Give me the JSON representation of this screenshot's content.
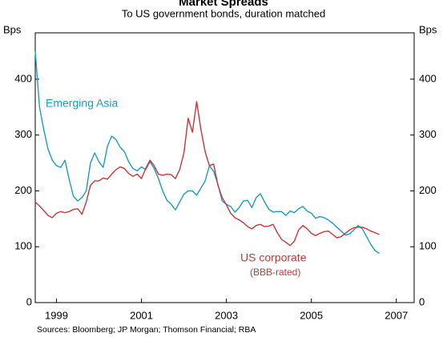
{
  "chart_data": {
    "type": "line",
    "title": "Market Spreads",
    "subtitle": "To US government bonds, duration matched",
    "y_label": "Bps",
    "y2_label": "Bps",
    "source": "Sources: Bloomberg; JP Morgan; Thomson Financial; RBA",
    "annotations": [
      {
        "text": "Emerging Asia",
        "series": 0
      },
      {
        "text": "US corporate",
        "series": 1
      },
      {
        "text": "(BBB-rated)",
        "series": 1
      }
    ],
    "x": [
      1998.5,
      1998.6,
      1998.7,
      1998.8,
      1998.9,
      1999.0,
      1999.1,
      1999.2,
      1999.3,
      1999.4,
      1999.5,
      1999.6,
      1999.7,
      1999.8,
      1999.9,
      2000.0,
      2000.1,
      2000.2,
      2000.3,
      2000.4,
      2000.5,
      2000.6,
      2000.7,
      2000.8,
      2000.9,
      2001.0,
      2001.1,
      2001.2,
      2001.3,
      2001.4,
      2001.5,
      2001.6,
      2001.7,
      2001.8,
      2001.9,
      2002.0,
      2002.1,
      2002.2,
      2002.3,
      2002.4,
      2002.5,
      2002.6,
      2002.7,
      2002.8,
      2002.9,
      2003.0,
      2003.1,
      2003.2,
      2003.3,
      2003.4,
      2003.5,
      2003.6,
      2003.7,
      2003.8,
      2003.9,
      2004.0,
      2004.1,
      2004.2,
      2004.3,
      2004.4,
      2004.5,
      2004.6,
      2004.7,
      2004.8,
      2004.9,
      2005.0,
      2005.1,
      2005.2,
      2005.3,
      2005.4,
      2005.5,
      2005.6,
      2005.7,
      2005.8,
      2005.9,
      2006.0,
      2006.1,
      2006.2,
      2006.3,
      2006.4,
      2006.5,
      2006.6
    ],
    "series": [
      {
        "name": "Emerging Asia",
        "color": "#1a9dc3",
        "values": [
          450,
          350,
          310,
          275,
          255,
          245,
          242,
          255,
          220,
          190,
          182,
          188,
          200,
          250,
          268,
          252,
          242,
          280,
          298,
          292,
          278,
          270,
          252,
          240,
          236,
          243,
          238,
          252,
          240,
          222,
          200,
          183,
          176,
          166,
          180,
          194,
          200,
          200,
          192,
          205,
          218,
          245,
          235,
          212,
          182,
          176,
          172,
          162,
          170,
          182,
          183,
          170,
          188,
          195,
          180,
          167,
          162,
          163,
          163,
          156,
          164,
          161,
          168,
          172,
          164,
          160,
          151,
          154,
          152,
          148,
          142,
          135,
          128,
          121,
          123,
          130,
          138,
          132,
          118,
          104,
          93,
          88
        ]
      },
      {
        "name": "US corporate",
        "color": "#c8363b",
        "values": [
          180,
          173,
          165,
          156,
          152,
          160,
          163,
          161,
          163,
          167,
          168,
          158,
          180,
          210,
          218,
          218,
          223,
          221,
          230,
          238,
          243,
          240,
          231,
          226,
          230,
          222,
          240,
          255,
          245,
          230,
          228,
          230,
          229,
          222,
          238,
          268,
          330,
          305,
          360,
          310,
          270,
          245,
          248,
          210,
          188,
          175,
          160,
          152,
          148,
          143,
          136,
          132,
          138,
          140,
          136,
          137,
          140,
          125,
          113,
          108,
          102,
          110,
          130,
          138,
          132,
          124,
          120,
          124,
          127,
          128,
          122,
          116,
          118,
          124,
          130,
          134,
          135,
          135,
          132,
          128,
          125,
          122
        ]
      }
    ],
    "xlim": [
      1998.5,
      2007.42
    ],
    "xticks": [
      1999,
      2001,
      2003,
      2005,
      2007
    ],
    "ylim": [
      0,
      483
    ],
    "yticks": [
      0,
      100,
      200,
      300,
      400
    ],
    "y2lim": [
      0,
      483
    ],
    "y2ticks": [
      0,
      100,
      200,
      300,
      400
    ]
  }
}
